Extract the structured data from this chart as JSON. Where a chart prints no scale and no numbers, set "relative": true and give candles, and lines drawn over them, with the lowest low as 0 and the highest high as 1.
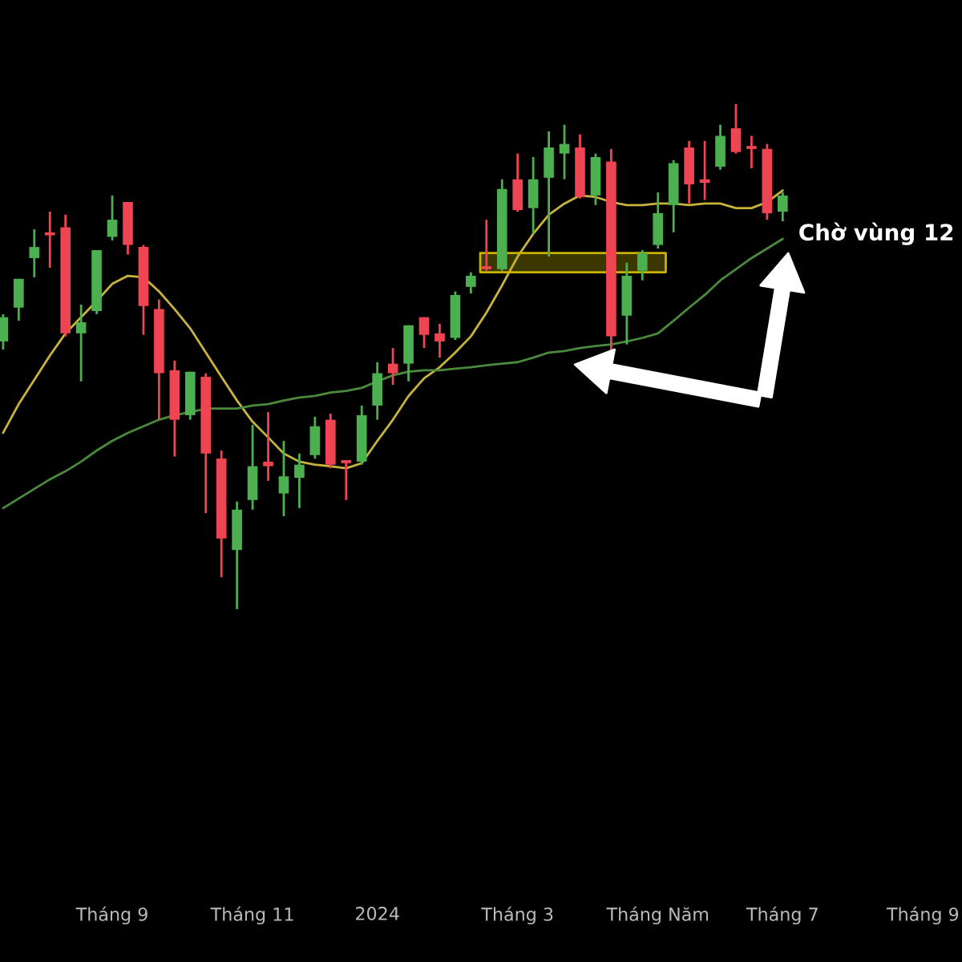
{
  "chart_data": {
    "type": "candlestick",
    "relative": true,
    "tick_labels": "x",
    "grid": false,
    "categories": [
      null,
      null,
      null,
      null,
      null,
      null,
      null,
      "Tháng 9",
      null,
      null,
      null,
      null,
      null,
      null,
      null,
      null,
      "Tháng 11",
      null,
      null,
      null,
      null,
      null,
      null,
      null,
      "2024",
      null,
      null,
      null,
      null,
      null,
      null,
      null,
      null,
      "Tháng 3",
      null,
      null,
      null,
      null,
      null,
      null,
      null,
      null,
      "Tháng Năm",
      null,
      null,
      null,
      null,
      null,
      null,
      null,
      "Tháng 7",
      null,
      null,
      null,
      null,
      null,
      null,
      null,
      null,
      "Tháng 9"
    ],
    "ohlc": [
      [
        0.53,
        0.584,
        0.514,
        0.578
      ],
      [
        0.597,
        0.654,
        0.571,
        0.654
      ],
      [
        0.695,
        0.752,
        0.657,
        0.717
      ],
      [
        0.746,
        0.787,
        0.676,
        0.74
      ],
      [
        0.756,
        0.781,
        0.54,
        0.546
      ],
      [
        0.546,
        0.603,
        0.451,
        0.568
      ],
      [
        0.59,
        0.711,
        0.584,
        0.711
      ],
      [
        0.737,
        0.819,
        0.73,
        0.771
      ],
      [
        0.806,
        0.806,
        0.702,
        0.721
      ],
      [
        0.717,
        0.721,
        0.543,
        0.6
      ],
      [
        0.594,
        0.613,
        0.375,
        0.467
      ],
      [
        0.473,
        0.492,
        0.302,
        0.375
      ],
      [
        0.384,
        0.47,
        0.375,
        0.47
      ],
      [
        0.46,
        0.467,
        0.19,
        0.308
      ],
      [
        0.298,
        0.314,
        0.063,
        0.14
      ],
      [
        0.117,
        0.213,
        0.0,
        0.197
      ],
      [
        0.216,
        0.365,
        0.197,
        0.283
      ],
      [
        0.292,
        0.39,
        0.254,
        0.283
      ],
      [
        0.229,
        0.333,
        0.184,
        0.263
      ],
      [
        0.26,
        0.308,
        0.2,
        0.286
      ],
      [
        0.305,
        0.381,
        0.298,
        0.362
      ],
      [
        0.375,
        0.387,
        0.279,
        0.286
      ],
      [
        0.295,
        0.295,
        0.216,
        0.289
      ],
      [
        0.292,
        0.403,
        0.286,
        0.384
      ],
      [
        0.403,
        0.489,
        0.375,
        0.467
      ],
      [
        0.486,
        0.517,
        0.444,
        0.467
      ],
      [
        0.486,
        0.562,
        0.451,
        0.562
      ],
      [
        0.578,
        0.578,
        0.517,
        0.543
      ],
      [
        0.546,
        0.565,
        0.498,
        0.53
      ],
      [
        0.537,
        0.629,
        0.533,
        0.622
      ],
      [
        0.638,
        0.667,
        0.625,
        0.66
      ],
      [
        0.679,
        0.771,
        0.67,
        0.673
      ],
      [
        0.673,
        0.851,
        0.67,
        0.832
      ],
      [
        0.851,
        0.902,
        0.787,
        0.79
      ],
      [
        0.794,
        0.895,
        0.743,
        0.851
      ],
      [
        0.854,
        0.946,
        0.698,
        0.914
      ],
      [
        0.902,
        0.959,
        0.851,
        0.921
      ],
      [
        0.914,
        0.94,
        0.813,
        0.816
      ],
      [
        0.819,
        0.902,
        0.8,
        0.895
      ],
      [
        0.886,
        0.911,
        0.511,
        0.54
      ],
      [
        0.581,
        0.686,
        0.524,
        0.66
      ],
      [
        0.67,
        0.711,
        0.651,
        0.705
      ],
      [
        0.721,
        0.825,
        0.714,
        0.784
      ],
      [
        0.8,
        0.889,
        0.746,
        0.883
      ],
      [
        0.914,
        0.927,
        0.803,
        0.841
      ],
      [
        0.851,
        0.927,
        0.81,
        0.844
      ],
      [
        0.876,
        0.959,
        0.87,
        0.937
      ],
      [
        0.952,
        1.0,
        0.902,
        0.905
      ],
      [
        0.917,
        0.937,
        0.873,
        0.911
      ],
      [
        0.911,
        0.921,
        0.771,
        0.784
      ],
      [
        0.787,
        0.825,
        0.768,
        0.819
      ],
      null,
      null,
      null,
      null,
      null,
      null,
      null,
      null,
      null
    ],
    "colors": [
      "#4caf50",
      "#4caf50",
      "#4caf50",
      "#ef4451",
      "#ef4451",
      "#4caf50",
      "#4caf50",
      "#4caf50",
      "#ef4451",
      "#ef4451",
      "#ef4451",
      "#ef4451",
      "#4caf50",
      "#ef4451",
      "#ef4451",
      "#4caf50",
      "#4caf50",
      "#ef4451",
      "#4caf50",
      "#4caf50",
      "#4caf50",
      "#ef4451",
      "#ef4451",
      "#4caf50",
      "#4caf50",
      "#ef4451",
      "#4caf50",
      "#ef4451",
      "#ef4451",
      "#4caf50",
      "#4caf50",
      "#ef4451",
      "#4caf50",
      "#ef4451",
      "#4caf50",
      "#4caf50",
      "#4caf50",
      "#ef4451",
      "#4caf50",
      "#ef4451",
      "#4caf50",
      "#4caf50",
      "#4caf50",
      "#4caf50",
      "#ef4451",
      "#ef4451",
      "#4caf50",
      "#ef4451",
      "#ef4451",
      "#ef4451",
      "#4caf50",
      null,
      null,
      null,
      null,
      null,
      null,
      null,
      null,
      null
    ],
    "series": [
      {
        "type": "line",
        "color": "#c8b43c",
        "values": [
          0.349,
          0.406,
          0.454,
          0.502,
          0.546,
          0.578,
          0.61,
          0.644,
          0.66,
          0.657,
          0.629,
          0.594,
          0.556,
          0.508,
          0.46,
          0.413,
          0.371,
          0.34,
          0.308,
          0.292,
          0.286,
          0.283,
          0.279,
          0.289,
          0.333,
          0.375,
          0.422,
          0.457,
          0.479,
          0.508,
          0.54,
          0.587,
          0.641,
          0.698,
          0.743,
          0.781,
          0.803,
          0.819,
          0.816,
          0.806,
          0.8,
          0.8,
          0.803,
          0.803,
          0.8,
          0.803,
          0.803,
          0.794,
          0.794,
          0.806,
          0.829,
          null,
          null,
          null,
          null,
          null,
          null,
          null,
          null,
          null
        ]
      },
      {
        "type": "line",
        "color": "#4a8a3c",
        "values": [
          0.2,
          0.219,
          0.238,
          0.257,
          0.273,
          0.292,
          0.314,
          0.333,
          0.349,
          0.362,
          0.375,
          0.384,
          0.39,
          0.397,
          0.397,
          0.397,
          0.403,
          0.406,
          0.413,
          0.419,
          0.422,
          0.429,
          0.432,
          0.438,
          0.451,
          0.463,
          0.47,
          0.473,
          0.473,
          0.476,
          0.479,
          0.483,
          0.486,
          0.489,
          0.498,
          0.508,
          0.511,
          0.517,
          0.521,
          0.524,
          0.53,
          0.537,
          0.546,
          0.571,
          0.597,
          0.622,
          0.651,
          0.673,
          0.695,
          0.714,
          0.733,
          null,
          null,
          null,
          null,
          null,
          null,
          null,
          null,
          null
        ]
      }
    ],
    "bands": [
      {
        "axis": "y",
        "from": 0.667,
        "to": 0.705,
        "color": "#c8b400"
      }
    ],
    "annotations": [
      "Chờ vùng 12"
    ]
  }
}
